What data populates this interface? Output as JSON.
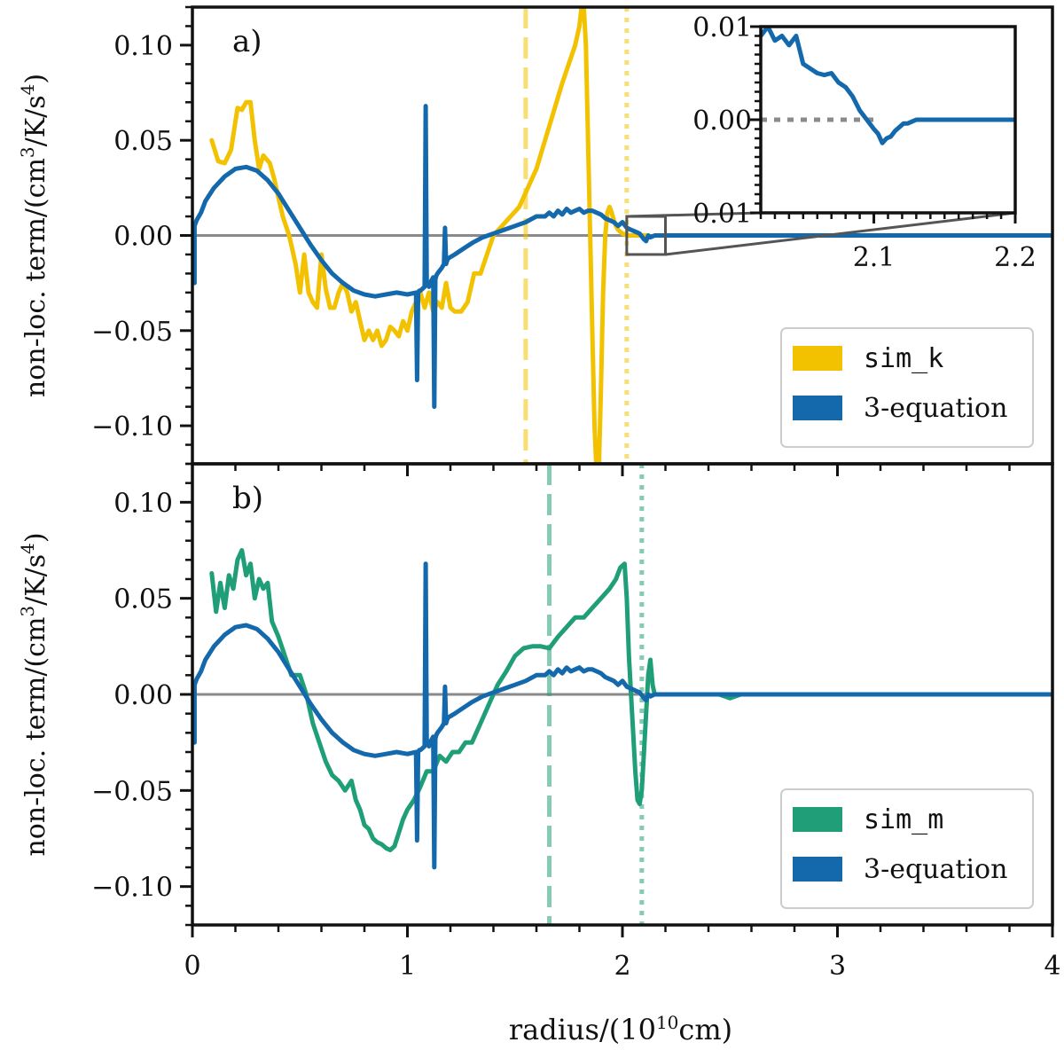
{
  "chart_data": [
    {
      "panel_label": "a)",
      "type": "line",
      "ylabel": "non-loc. term/(cm³/K/s⁴)",
      "ylabel_parts": {
        "base": "non-loc. term/(cm",
        "exp1": "3",
        "mid": "/K/s",
        "exp2": "4",
        "end": ")"
      },
      "xlim": [
        0,
        4
      ],
      "ylim": [
        -0.12,
        0.12
      ],
      "yticks": [
        0.1,
        0.05,
        0.0,
        -0.05,
        -0.1
      ],
      "ytick_labels": [
        "0.10",
        "0.05",
        "0.00",
        "−0.05",
        "−0.10"
      ],
      "hline": 0,
      "vlines": [
        {
          "x": 1.55,
          "style": "dashed",
          "color": "#f2c200"
        },
        {
          "x": 2.02,
          "style": "dotted",
          "color": "#f2c200"
        }
      ],
      "legend": {
        "loc": "lower right",
        "entries": [
          {
            "label": "sim_k",
            "color": "#f2c200",
            "mono": true
          },
          {
            "label": "3-equation",
            "color": "#1469ac",
            "mono": false
          }
        ]
      },
      "series": [
        {
          "name": "sim_k",
          "color": "#f2c200",
          "x": [
            0.09,
            0.12,
            0.15,
            0.18,
            0.21,
            0.23,
            0.25,
            0.27,
            0.29,
            0.31,
            0.33,
            0.36,
            0.38,
            0.4,
            0.42,
            0.45,
            0.48,
            0.5,
            0.52,
            0.54,
            0.56,
            0.58,
            0.6,
            0.62,
            0.64,
            0.66,
            0.68,
            0.7,
            0.72,
            0.74,
            0.76,
            0.78,
            0.8,
            0.82,
            0.84,
            0.86,
            0.88,
            0.9,
            0.92,
            0.94,
            0.96,
            0.98,
            1.0,
            1.02,
            1.04,
            1.06,
            1.08,
            1.1,
            1.12,
            1.14,
            1.16,
            1.18,
            1.2,
            1.22,
            1.25,
            1.28,
            1.31,
            1.34,
            1.37,
            1.4,
            1.44,
            1.48,
            1.52,
            1.56,
            1.6,
            1.64,
            1.68,
            1.72,
            1.75,
            1.78,
            1.8,
            1.81,
            1.82,
            1.83,
            1.84,
            1.85,
            1.86,
            1.87,
            1.88,
            1.89,
            1.9,
            1.91,
            1.92,
            1.93,
            1.94,
            1.95,
            1.96,
            1.97,
            1.98,
            2.0,
            2.02,
            2.05,
            2.08,
            2.12
          ],
          "y": [
            0.05,
            0.039,
            0.038,
            0.045,
            0.067,
            0.066,
            0.07,
            0.07,
            0.05,
            0.035,
            0.042,
            0.038,
            0.03,
            0.02,
            0.01,
            0.0,
            -0.015,
            -0.03,
            -0.01,
            -0.03,
            -0.035,
            -0.038,
            -0.01,
            -0.028,
            -0.038,
            -0.038,
            -0.03,
            -0.025,
            -0.03,
            -0.04,
            -0.035,
            -0.045,
            -0.055,
            -0.05,
            -0.055,
            -0.05,
            -0.058,
            -0.055,
            -0.048,
            -0.05,
            -0.053,
            -0.045,
            -0.05,
            -0.04,
            -0.035,
            -0.03,
            -0.038,
            -0.03,
            -0.04,
            -0.035,
            -0.038,
            -0.025,
            -0.038,
            -0.04,
            -0.04,
            -0.035,
            -0.02,
            -0.02,
            -0.01,
            0.0,
            0.005,
            0.01,
            0.015,
            0.025,
            0.035,
            0.05,
            0.065,
            0.08,
            0.09,
            0.1,
            0.11,
            0.12,
            0.12,
            0.1,
            0.05,
            0.0,
            -0.05,
            -0.1,
            -0.125,
            -0.125,
            -0.08,
            -0.03,
            0.0,
            0.012,
            0.015,
            0.012,
            0.008,
            0.005,
            0.003,
            0.001,
            0.0,
            0.0,
            0.0,
            0.0
          ]
        },
        {
          "name": "3-equation",
          "color": "#1469ac",
          "x": [
            0.01,
            0.01,
            0.02,
            0.04,
            0.06,
            0.1,
            0.15,
            0.2,
            0.25,
            0.3,
            0.35,
            0.4,
            0.45,
            0.5,
            0.55,
            0.6,
            0.65,
            0.7,
            0.75,
            0.8,
            0.85,
            0.9,
            0.95,
            1.0,
            1.04,
            1.045,
            1.05,
            1.055,
            1.06,
            1.07,
            1.08,
            1.085,
            1.09,
            1.095,
            1.1,
            1.11,
            1.12,
            1.125,
            1.13,
            1.135,
            1.14,
            1.16,
            1.17,
            1.175,
            1.18,
            1.185,
            1.19,
            1.22,
            1.26,
            1.3,
            1.35,
            1.4,
            1.45,
            1.5,
            1.55,
            1.6,
            1.64,
            1.66,
            1.68,
            1.7,
            1.72,
            1.74,
            1.76,
            1.78,
            1.8,
            1.82,
            1.84,
            1.86,
            1.88,
            1.9,
            1.92,
            1.94,
            1.96,
            1.98,
            2.0,
            2.02,
            2.04,
            2.06,
            2.08,
            2.1,
            2.11,
            2.12,
            2.13,
            2.15,
            2.2,
            2.3,
            2.5,
            3.0,
            3.5,
            4.0
          ],
          "y": [
            -0.025,
            0.005,
            0.008,
            0.012,
            0.018,
            0.025,
            0.031,
            0.035,
            0.036,
            0.034,
            0.029,
            0.022,
            0.013,
            0.004,
            -0.005,
            -0.013,
            -0.02,
            -0.025,
            -0.029,
            -0.031,
            -0.032,
            -0.031,
            -0.03,
            -0.031,
            -0.03,
            -0.076,
            -0.03,
            -0.029,
            -0.029,
            -0.028,
            -0.027,
            0.068,
            -0.026,
            -0.025,
            -0.027,
            -0.024,
            -0.022,
            -0.09,
            -0.023,
            -0.021,
            -0.02,
            -0.017,
            -0.015,
            0.004,
            -0.015,
            -0.013,
            -0.012,
            -0.01,
            -0.007,
            -0.004,
            -0.001,
            0.001,
            0.003,
            0.005,
            0.007,
            0.01,
            0.01,
            0.012,
            0.01,
            0.013,
            0.011,
            0.014,
            0.012,
            0.013,
            0.014,
            0.012,
            0.013,
            0.013,
            0.012,
            0.011,
            0.009,
            0.008,
            0.007,
            0.005,
            0.007,
            0.004,
            0.003,
            0.002,
            0.001,
            -0.002,
            -0.003,
            0.0,
            -0.001,
            0.0,
            0.0,
            0.0,
            0.0,
            0.0,
            0.0,
            0.0
          ]
        }
      ],
      "inset": {
        "xlim": [
          2.02,
          2.2
        ],
        "ylim": [
          -0.01,
          0.01
        ],
        "xtick_labels": [
          {
            "v": 2.1,
            "t": "2.1"
          },
          {
            "v": 2.2,
            "t": "2.2"
          }
        ],
        "ytick_labels": [
          {
            "v": 0.01,
            "t": "0.01"
          },
          {
            "v": 0.0,
            "t": "0.00"
          },
          {
            "v": -0.01,
            "t": "0.01"
          }
        ],
        "zoom_region": {
          "x": [
            2.02,
            2.2
          ],
          "y": [
            -0.01,
            0.01
          ]
        },
        "reference_line": {
          "y": 0,
          "style": "dotted",
          "x": [
            2.02,
            2.1
          ]
        },
        "series": {
          "name": "3-equation",
          "color": "#1469ac",
          "x": [
            2.02,
            2.025,
            2.03,
            2.035,
            2.04,
            2.045,
            2.05,
            2.055,
            2.06,
            2.065,
            2.07,
            2.075,
            2.08,
            2.085,
            2.09,
            2.095,
            2.1,
            2.103,
            2.106,
            2.109,
            2.112,
            2.115,
            2.118,
            2.121,
            2.124,
            2.127,
            2.13,
            2.135,
            2.14,
            2.15,
            2.2
          ],
          "y": [
            0.009,
            0.01,
            0.0085,
            0.009,
            0.008,
            0.009,
            0.006,
            0.0055,
            0.005,
            0.0048,
            0.005,
            0.004,
            0.0035,
            0.0025,
            0.001,
            0.0,
            -0.001,
            -0.0015,
            -0.0025,
            -0.002,
            -0.0018,
            -0.0012,
            -0.0008,
            -0.0004,
            -0.0004,
            -0.0002,
            0.0,
            0.0,
            0.0,
            0.0,
            0.0
          ]
        }
      }
    },
    {
      "panel_label": "b)",
      "type": "line",
      "ylabel": "non-loc. term/(cm³/K/s⁴)",
      "ylabel_parts": {
        "base": "non-loc. term/(cm",
        "exp1": "3",
        "mid": "/K/s",
        "exp2": "4",
        "end": ")"
      },
      "xlabel": "radius/(10¹⁰cm)",
      "xlabel_parts": {
        "base": "radius/(10",
        "exp": "10",
        "end": "cm)"
      },
      "xlim": [
        0,
        4
      ],
      "ylim": [
        -0.12,
        0.12
      ],
      "xticks": [
        0,
        1,
        2,
        3,
        4
      ],
      "xtick_labels": [
        "0",
        "1",
        "2",
        "3",
        "4"
      ],
      "yticks": [
        0.1,
        0.05,
        0.0,
        -0.05,
        -0.1
      ],
      "ytick_labels": [
        "0.10",
        "0.05",
        "0.00",
        "−0.05",
        "−0.10"
      ],
      "hline": 0,
      "vlines": [
        {
          "x": 1.66,
          "style": "dashed",
          "color": "#1f9e78"
        },
        {
          "x": 2.09,
          "style": "dotted",
          "color": "#1f9e78"
        }
      ],
      "legend": {
        "loc": "lower right",
        "entries": [
          {
            "label": "sim_m",
            "color": "#1f9e78",
            "mono": true
          },
          {
            "label": "3-equation",
            "color": "#1469ac",
            "mono": false
          }
        ]
      },
      "series": [
        {
          "name": "sim_m",
          "color": "#1f9e78",
          "x": [
            0.09,
            0.11,
            0.13,
            0.15,
            0.17,
            0.19,
            0.21,
            0.23,
            0.25,
            0.27,
            0.29,
            0.31,
            0.33,
            0.35,
            0.37,
            0.4,
            0.43,
            0.46,
            0.5,
            0.53,
            0.56,
            0.59,
            0.62,
            0.65,
            0.68,
            0.71,
            0.74,
            0.76,
            0.78,
            0.8,
            0.82,
            0.84,
            0.86,
            0.88,
            0.9,
            0.92,
            0.94,
            0.96,
            0.98,
            1.0,
            1.03,
            1.06,
            1.09,
            1.12,
            1.15,
            1.18,
            1.21,
            1.24,
            1.27,
            1.3,
            1.34,
            1.38,
            1.42,
            1.46,
            1.5,
            1.54,
            1.58,
            1.62,
            1.66,
            1.7,
            1.74,
            1.78,
            1.82,
            1.86,
            1.9,
            1.94,
            1.97,
            1.99,
            2.01,
            2.02,
            2.03,
            2.04,
            2.05,
            2.06,
            2.07,
            2.08,
            2.09,
            2.1,
            2.11,
            2.12,
            2.13,
            2.14,
            2.15,
            2.17,
            2.25,
            2.45,
            2.5,
            2.55,
            3.0,
            4.0
          ],
          "y": [
            0.063,
            0.043,
            0.058,
            0.045,
            0.062,
            0.055,
            0.07,
            0.075,
            0.062,
            0.068,
            0.05,
            0.06,
            0.055,
            0.058,
            0.038,
            0.03,
            0.02,
            0.01,
            0.01,
            0.0,
            -0.015,
            -0.025,
            -0.035,
            -0.042,
            -0.045,
            -0.05,
            -0.045,
            -0.055,
            -0.06,
            -0.068,
            -0.07,
            -0.075,
            -0.077,
            -0.078,
            -0.08,
            -0.081,
            -0.079,
            -0.072,
            -0.065,
            -0.06,
            -0.055,
            -0.048,
            -0.04,
            -0.04,
            -0.032,
            -0.035,
            -0.03,
            -0.03,
            -0.025,
            -0.025,
            -0.015,
            -0.005,
            0.005,
            0.012,
            0.02,
            0.024,
            0.025,
            0.025,
            0.024,
            0.03,
            0.035,
            0.04,
            0.04,
            0.045,
            0.05,
            0.055,
            0.06,
            0.066,
            0.068,
            0.05,
            0.02,
            0.0,
            -0.02,
            -0.04,
            -0.055,
            -0.057,
            -0.05,
            -0.03,
            -0.01,
            0.01,
            0.018,
            0.005,
            0.0,
            0.0,
            0.0,
            0.0,
            -0.002,
            0.0,
            0.0,
            0.0
          ]
        },
        {
          "name": "3-equation",
          "color": "#1469ac",
          "x": [
            0.01,
            0.01,
            0.02,
            0.04,
            0.06,
            0.1,
            0.15,
            0.2,
            0.25,
            0.3,
            0.35,
            0.4,
            0.45,
            0.5,
            0.55,
            0.6,
            0.65,
            0.7,
            0.75,
            0.8,
            0.85,
            0.9,
            0.95,
            1.0,
            1.04,
            1.045,
            1.05,
            1.055,
            1.06,
            1.07,
            1.08,
            1.085,
            1.09,
            1.095,
            1.1,
            1.11,
            1.12,
            1.125,
            1.13,
            1.135,
            1.14,
            1.16,
            1.17,
            1.175,
            1.18,
            1.185,
            1.19,
            1.22,
            1.26,
            1.3,
            1.35,
            1.4,
            1.45,
            1.5,
            1.55,
            1.6,
            1.64,
            1.66,
            1.68,
            1.7,
            1.72,
            1.74,
            1.76,
            1.78,
            1.8,
            1.82,
            1.84,
            1.86,
            1.88,
            1.9,
            1.92,
            1.94,
            1.96,
            1.98,
            2.0,
            2.02,
            2.04,
            2.06,
            2.08,
            2.1,
            2.11,
            2.12,
            2.13,
            2.15,
            2.2,
            2.3,
            2.5,
            3.0,
            3.5,
            4.0
          ],
          "y": [
            -0.025,
            0.005,
            0.008,
            0.012,
            0.018,
            0.025,
            0.031,
            0.035,
            0.036,
            0.034,
            0.029,
            0.022,
            0.013,
            0.004,
            -0.005,
            -0.013,
            -0.02,
            -0.025,
            -0.029,
            -0.031,
            -0.032,
            -0.031,
            -0.03,
            -0.031,
            -0.03,
            -0.076,
            -0.03,
            -0.029,
            -0.029,
            -0.028,
            -0.027,
            0.068,
            -0.026,
            -0.025,
            -0.027,
            -0.024,
            -0.022,
            -0.09,
            -0.023,
            -0.021,
            -0.02,
            -0.017,
            -0.015,
            0.004,
            -0.015,
            -0.013,
            -0.012,
            -0.01,
            -0.007,
            -0.004,
            -0.001,
            0.001,
            0.003,
            0.005,
            0.007,
            0.01,
            0.01,
            0.012,
            0.01,
            0.013,
            0.011,
            0.014,
            0.012,
            0.013,
            0.014,
            0.012,
            0.013,
            0.013,
            0.012,
            0.011,
            0.009,
            0.008,
            0.007,
            0.005,
            0.007,
            0.004,
            0.003,
            0.002,
            0.001,
            -0.002,
            -0.003,
            0.0,
            -0.001,
            0.0,
            0.0,
            0.0,
            0.0,
            0.0,
            0.0,
            0.0
          ]
        }
      ]
    }
  ]
}
